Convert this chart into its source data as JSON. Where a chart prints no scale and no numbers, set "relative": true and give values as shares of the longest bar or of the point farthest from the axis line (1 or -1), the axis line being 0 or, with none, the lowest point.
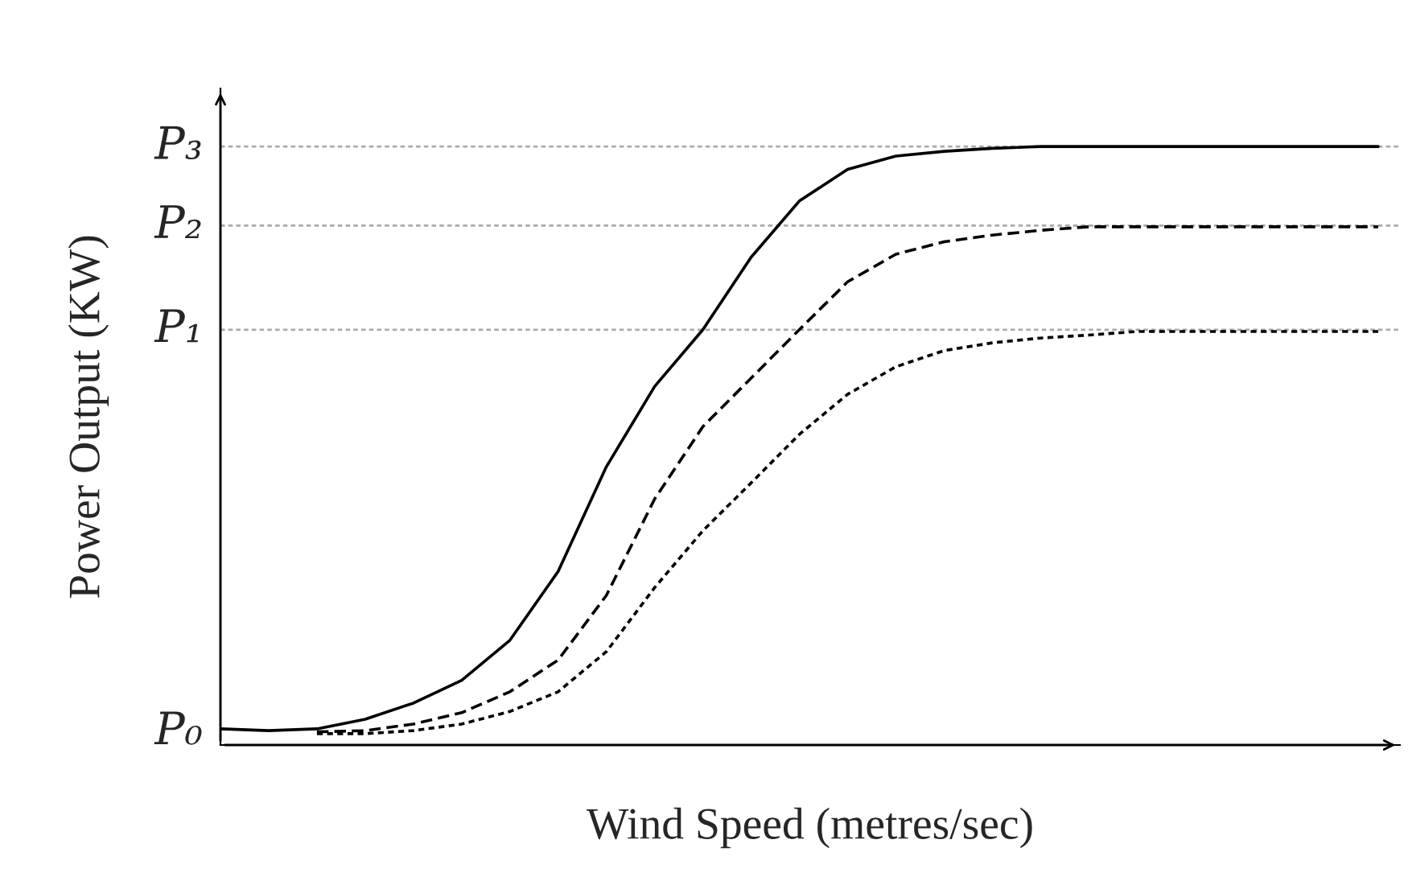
{
  "chart_data": {
    "type": "line",
    "relative": true,
    "xlabel": "Wind Speed (metres/sec)",
    "ylabel": "Power Output (KW)",
    "categories": [
      null,
      null,
      null,
      null,
      null,
      null,
      null,
      null,
      null,
      null,
      null,
      null,
      null,
      null,
      null,
      null,
      null,
      null,
      null,
      null,
      null,
      null,
      null,
      null,
      null
    ],
    "series": [
      {
        "color": "#000000",
        "line_style": "solid",
        "values": [
          0.027,
          0.024,
          0.027,
          0.043,
          0.07,
          0.108,
          0.175,
          0.29,
          0.465,
          0.599,
          0.694,
          0.815,
          0.909,
          0.962,
          0.984,
          0.992,
          0.997,
          1.0,
          1.0,
          1.0,
          1.0,
          1.0,
          1.0,
          1.0,
          1.0
        ]
      },
      {
        "color": "#000000",
        "line_style": "dashed",
        "values": [
          null,
          null,
          0.022,
          0.024,
          0.035,
          0.054,
          0.089,
          0.142,
          0.25,
          0.411,
          0.532,
          0.613,
          0.694,
          0.774,
          0.82,
          0.841,
          0.852,
          0.86,
          0.866,
          0.866,
          0.866,
          0.866,
          0.866,
          0.866,
          0.866
        ]
      },
      {
        "color": "#000000",
        "line_style": "dotted",
        "values": [
          null,
          null,
          0.019,
          0.019,
          0.024,
          0.035,
          0.056,
          0.089,
          0.156,
          0.263,
          0.358,
          0.438,
          0.519,
          0.586,
          0.632,
          0.659,
          0.672,
          0.68,
          0.685,
          0.691,
          0.691,
          0.691,
          0.691,
          0.691,
          0.691
        ]
      }
    ],
    "ref_lines": [
      {
        "axis": "y",
        "value": 0.694,
        "label": "P₁",
        "color": "#aaaaaa",
        "line_style": "dotted"
      },
      {
        "axis": "y",
        "value": 0.868,
        "label": "P₂",
        "color": "#aaaaaa",
        "line_style": "dotted"
      },
      {
        "axis": "y",
        "value": 1.0,
        "label": "P₃",
        "color": "#aaaaaa",
        "line_style": "dotted"
      }
    ],
    "annotations": [
      "P₀"
    ]
  }
}
